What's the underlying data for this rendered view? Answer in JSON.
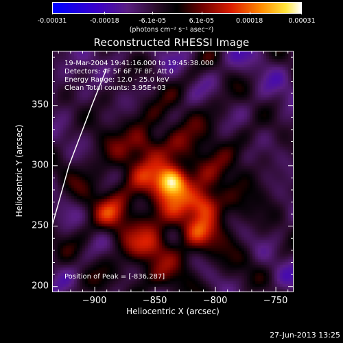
{
  "chart_data": {
    "type": "heatmap",
    "title": "Reconstructed RHESSI Image",
    "xlabel": "Heliocentric X (arcsec)",
    "ylabel": "Heliocentric Y (arcsec)",
    "xlim": [
      -935,
      -735
    ],
    "ylim": [
      195,
      395
    ],
    "xticks": [
      -900,
      -850,
      -800,
      -750
    ],
    "yticks": [
      200,
      250,
      300,
      350
    ],
    "colorbar": {
      "ticks": [
        "-0.00031",
        "-0.00018",
        "-6.1e-05",
        "6.1e-05",
        "0.00018",
        "0.00031"
      ],
      "tick_values": [
        -0.00031,
        -0.00018,
        -6.1e-05,
        6.1e-05,
        0.00018,
        0.00031
      ],
      "units_label": "(photons cm⁻² s⁻¹ asec⁻²)",
      "colormap": "blue-purple-black-red-yellow-white"
    },
    "annotations": {
      "time_range": "19-Mar-2004 19:41:16.000 to 19:45:38.000",
      "detectors": "Detectors: 4F 5F 6F 7F 8F, Att 0",
      "energy": "Energy Range: 12.0 - 25.0 keV",
      "method": "Clean    Total counts: 3.95E+03",
      "peak": "Position of Peak = [-836,287]"
    },
    "sources": [
      {
        "x": -836,
        "y": 287,
        "intensity": 0.00031
      },
      {
        "x": -808,
        "y": 268,
        "intensity": 0.00019
      },
      {
        "x": -858,
        "y": 318,
        "intensity": 0.00011
      },
      {
        "x": -885,
        "y": 260,
        "intensity": 8e-05
      },
      {
        "x": -815,
        "y": 245,
        "intensity": 0.0001
      },
      {
        "x": -850,
        "y": 232,
        "intensity": 9e-05
      },
      {
        "x": -865,
        "y": 208,
        "intensity": 7e-05
      }
    ],
    "limb_curve": [
      [
        -935,
        250
      ],
      [
        -921,
        300
      ],
      [
        -902,
        350
      ],
      [
        -890,
        380
      ]
    ],
    "limb_color": "#ffffff"
  },
  "footer": {
    "timestamp": "27-Jun-2013 13:25"
  }
}
